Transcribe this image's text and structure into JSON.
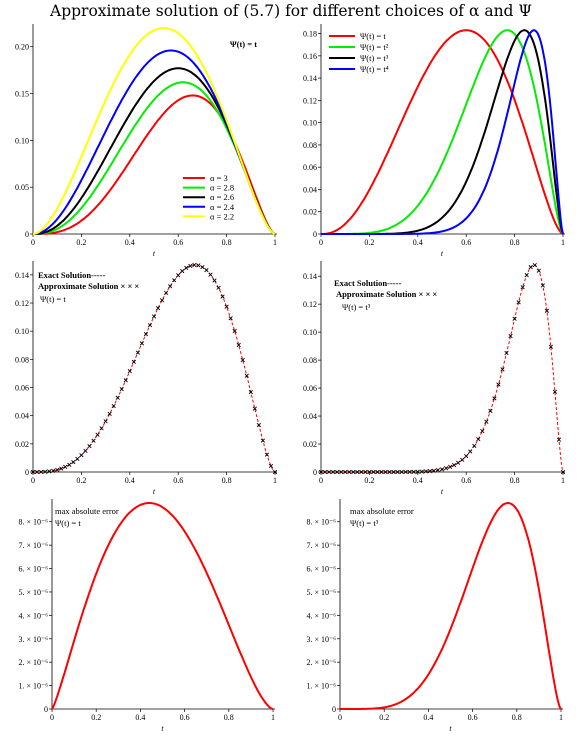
{
  "title": "Approximate solution of (5.7) for different choices of α and Ψ",
  "chart_data": [
    {
      "id": "p1",
      "type": "line",
      "xlabel": "t",
      "xlim": [
        0,
        1
      ],
      "ylim": [
        0,
        0.22
      ],
      "xticks": [
        "0",
        "0.2",
        "0.4",
        "0.6",
        "0.8",
        "1"
      ],
      "yticks": [
        "0",
        "0.05",
        "0.10",
        "0.15",
        "0.20"
      ],
      "annotation": "Ψ(t) = t",
      "legend_position": "bottom-right",
      "series": [
        {
          "name": "α = 3",
          "color": "#ff0000",
          "peak_t": 0.66,
          "peak": 0.148
        },
        {
          "name": "α = 2.8",
          "color": "#00ee00",
          "peak_t": 0.62,
          "peak": 0.162
        },
        {
          "name": "α = 2.6",
          "color": "#000000",
          "peak_t": 0.6,
          "peak": 0.177
        },
        {
          "name": "α = 2.4",
          "color": "#0000ff",
          "peak_t": 0.57,
          "peak": 0.196
        },
        {
          "name": "α = 2.2",
          "color": "#ffff00",
          "peak_t": 0.54,
          "peak": 0.22
        }
      ]
    },
    {
      "id": "p2",
      "type": "line",
      "xlabel": "t",
      "xlim": [
        0,
        1
      ],
      "ylim": [
        0,
        0.185
      ],
      "xticks": [
        "0",
        "0.2",
        "0.4",
        "0.6",
        "0.8",
        "1"
      ],
      "yticks": [
        "0",
        "0.02",
        "0.04",
        "0.06",
        "0.08",
        "0.10",
        "0.12",
        "0.14",
        "0.16",
        "0.18"
      ],
      "legend_position": "top-left",
      "series": [
        {
          "name": "Ψ(t) = t",
          "color": "#ff0000",
          "peak_t": 0.6,
          "peak": 0.183
        },
        {
          "name": "Ψ(t) = t²",
          "color": "#00ee00",
          "peak_t": 0.77,
          "peak": 0.183
        },
        {
          "name": "Ψ(t) = t³",
          "color": "#000000",
          "peak_t": 0.84,
          "peak": 0.183
        },
        {
          "name": "Ψ(t) = t⁴",
          "color": "#0000ff",
          "peak_t": 0.88,
          "peak": 0.183
        }
      ]
    },
    {
      "id": "p3",
      "type": "line",
      "xlabel": "t",
      "xlim": [
        0,
        1
      ],
      "ylim": [
        0,
        0.147
      ],
      "xticks": [
        "0",
        "0.2",
        "0.4",
        "0.6",
        "0.8",
        "1"
      ],
      "yticks": [
        "0",
        "0.02",
        "0.04",
        "0.06",
        "0.08",
        "0.10",
        "0.12",
        "0.14"
      ],
      "legend": [
        "Exact Solution-----",
        "Approximate Solution × × ×"
      ],
      "annotation": "Ψ(t) = t",
      "series": [
        {
          "name": "Exact Solution",
          "color": "#ff0000",
          "style": "dashed",
          "peak_t": 0.67,
          "peak": 0.147
        },
        {
          "name": "Approximate Solution",
          "color": "#000000",
          "style": "markers",
          "peak_t": 0.67,
          "peak": 0.147
        }
      ]
    },
    {
      "id": "p4",
      "type": "line",
      "xlabel": "t",
      "xlim": [
        0,
        1
      ],
      "ylim": [
        0,
        0.148
      ],
      "xticks": [
        "0",
        "0.2",
        "0.4",
        "0.6",
        "0.8",
        "1"
      ],
      "yticks": [
        "0",
        "0.02",
        "0.04",
        "0.06",
        "0.08",
        "0.10",
        "0.12",
        "0.14"
      ],
      "legend": [
        "Exact Solution-----",
        "Approximate Solution × × ×"
      ],
      "annotation": "Ψ(t) = t³",
      "series": [
        {
          "name": "Exact Solution",
          "color": "#ff0000",
          "style": "dashed",
          "peak_t": 0.88,
          "peak": 0.148
        },
        {
          "name": "Approximate Solution",
          "color": "#000000",
          "style": "markers",
          "peak_t": 0.88,
          "peak": 0.148
        }
      ]
    },
    {
      "id": "p5",
      "type": "line",
      "xlabel": "t",
      "xlim": [
        0,
        1
      ],
      "ylim": [
        0,
        8.8e-06
      ],
      "xticks": [
        "0",
        "0.2",
        "0.4",
        "0.6",
        "0.8",
        "1"
      ],
      "yticks": [
        "0",
        "1. × 10⁻⁶",
        "2. × 10⁻⁶",
        "3. × 10⁻⁶",
        "4. × 10⁻⁶",
        "5. × 10⁻⁶",
        "6. × 10⁻⁶",
        "7. × 10⁻⁶",
        "8. × 10⁻⁶"
      ],
      "annotation": [
        "max absolute error",
        "Ψ(t) = t"
      ],
      "series": [
        {
          "color": "#ff0000",
          "peak_t": 0.44,
          "peak": 8.8e-06
        }
      ]
    },
    {
      "id": "p6",
      "type": "line",
      "xlabel": "t",
      "xlim": [
        0,
        1
      ],
      "ylim": [
        0,
        8.8e-06
      ],
      "xticks": [
        "0",
        "0.2",
        "0.4",
        "0.6",
        "0.8",
        "1"
      ],
      "yticks": [
        "0",
        "1. × 10⁻⁶",
        "2. × 10⁻⁶",
        "3. × 10⁻⁶",
        "4. × 10⁻⁶",
        "5. × 10⁻⁶",
        "6. × 10⁻⁶",
        "7. × 10⁻⁶",
        "8. × 10⁻⁶"
      ],
      "annotation": [
        "max absolute error",
        "Ψ(t) = t³"
      ],
      "series": [
        {
          "color": "#ff0000",
          "peak_t": 0.76,
          "peak": 8.8e-06
        }
      ]
    }
  ]
}
